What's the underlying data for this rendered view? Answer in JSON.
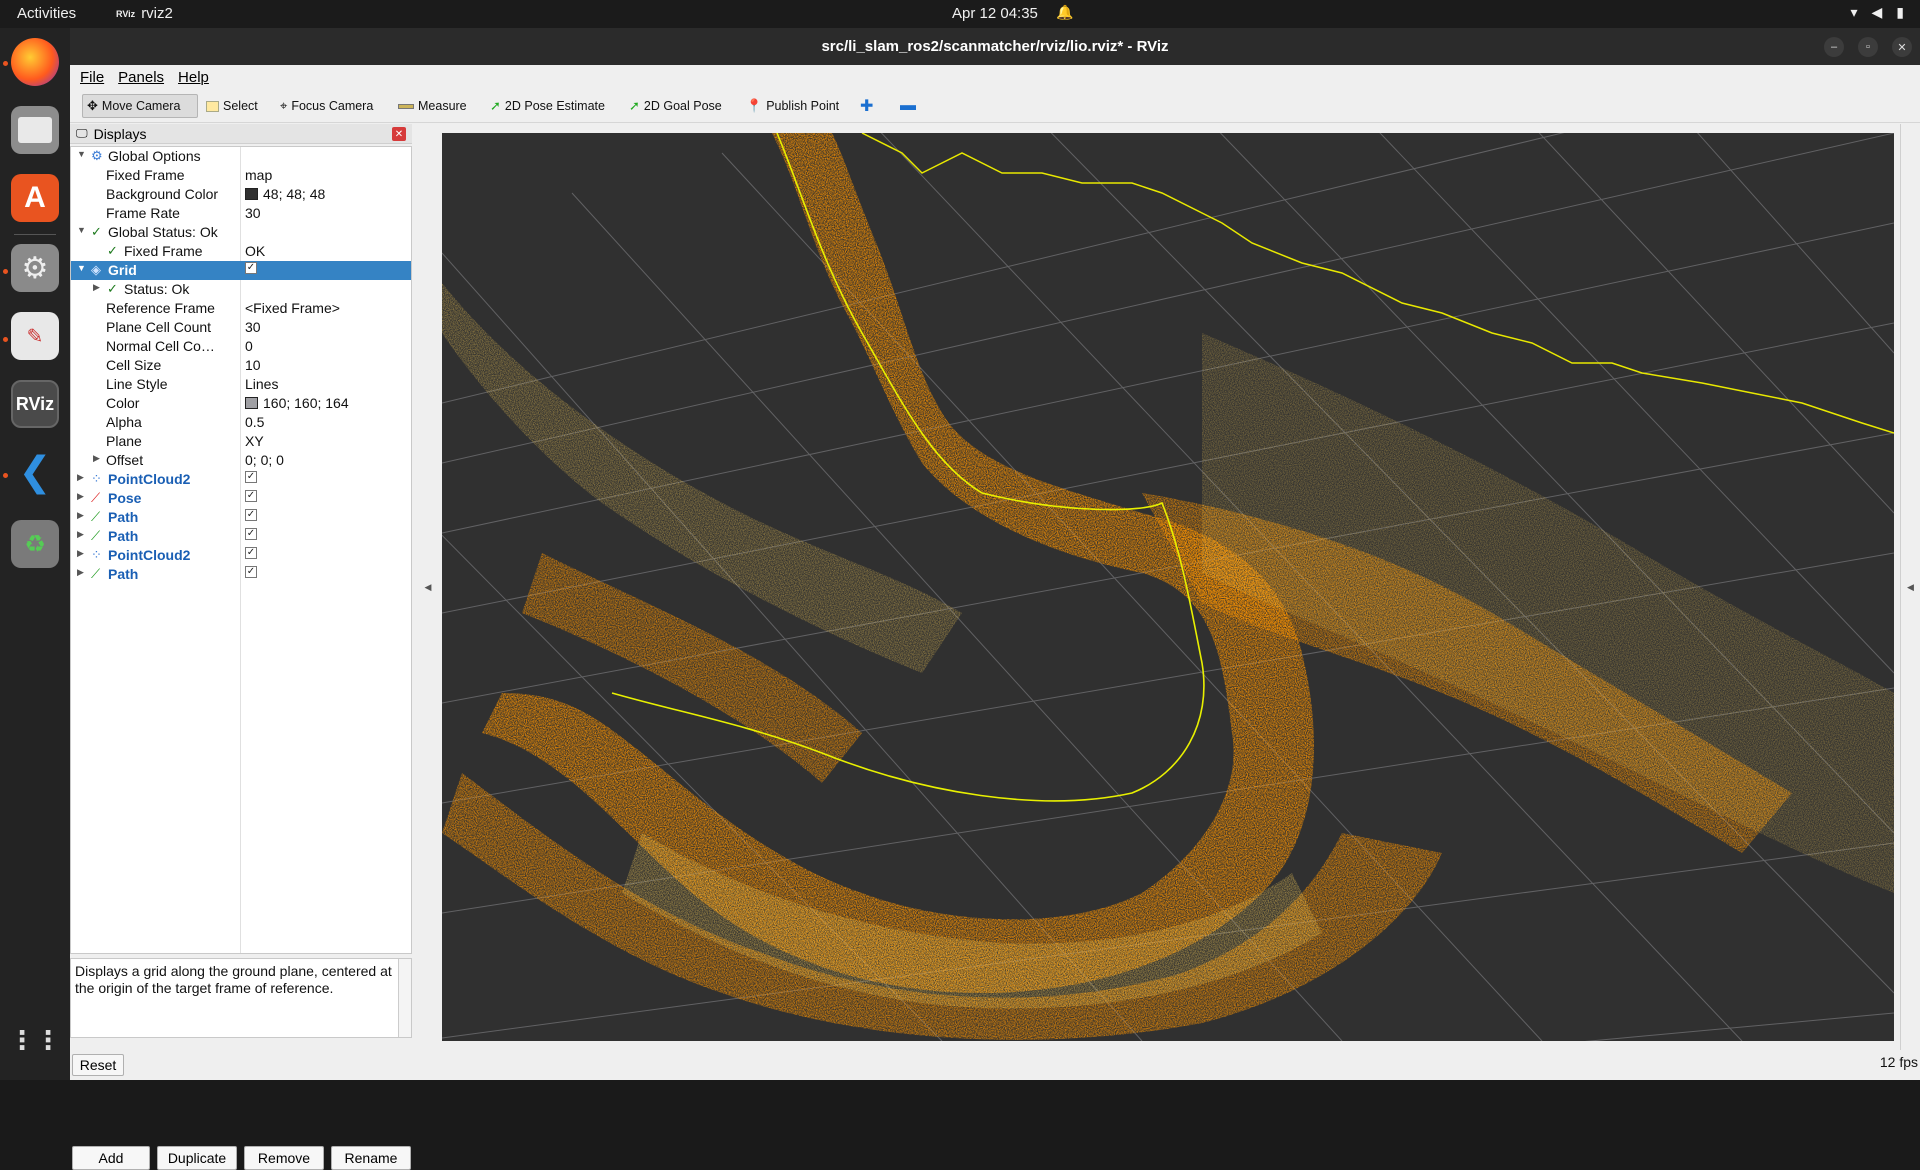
{
  "topbar": {
    "activities": "Activities",
    "app_name": "rviz2",
    "app_logo": "RViz",
    "datetime": "Apr 12  04:35",
    "tray_icons": [
      "wifi-icon",
      "volume-icon",
      "battery-icon"
    ]
  },
  "dock": {
    "items": [
      "firefox-icon",
      "files-icon",
      "app-center-icon",
      "settings-icon",
      "text-editor-icon",
      "rviz-icon",
      "vscode-icon",
      "trash-icon",
      "show-apps-icon"
    ],
    "rviz_label": "RViz"
  },
  "window": {
    "title": "src/li_slam_ros2/scanmatcher/rviz/lio.rviz* - RViz"
  },
  "menu": {
    "file": "File",
    "panels": "Panels",
    "help": "Help"
  },
  "toolbar": {
    "move_camera": "Move Camera",
    "select": "Select",
    "focus_camera": "Focus Camera",
    "measure": "Measure",
    "pose_estimate": "2D Pose Estimate",
    "goal_pose": "2D Goal Pose",
    "publish_point": "Publish Point"
  },
  "displays": {
    "header": "Displays",
    "global_options": "Global Options",
    "fixed_frame_label": "Fixed Frame",
    "fixed_frame_value": "map",
    "background_color_label": "Background Color",
    "background_color_value": "48; 48; 48",
    "background_color_hex": "#303030",
    "frame_rate_label": "Frame Rate",
    "frame_rate_value": "30",
    "global_status": "Global Status: Ok",
    "status_fixed_frame_label": "Fixed Frame",
    "status_fixed_frame_value": "OK",
    "grid": {
      "label": "Grid",
      "status": "Status: Ok",
      "reference_frame_label": "Reference Frame",
      "reference_frame_value": "<Fixed Frame>",
      "plane_cell_count_label": "Plane Cell Count",
      "plane_cell_count_value": "30",
      "normal_cell_count_label": "Normal Cell Co…",
      "normal_cell_count_value": "0",
      "cell_size_label": "Cell Size",
      "cell_size_value": "10",
      "line_style_label": "Line Style",
      "line_style_value": "Lines",
      "color_label": "Color",
      "color_value": "160; 160; 164",
      "color_hex": "#a0a0a4",
      "alpha_label": "Alpha",
      "alpha_value": "0.5",
      "plane_label": "Plane",
      "plane_value": "XY",
      "offset_label": "Offset",
      "offset_value": "0; 0; 0"
    },
    "items": [
      {
        "label": "PointCloud2",
        "icon": "pointcloud-icon"
      },
      {
        "label": "Pose",
        "icon": "pose-arrow-icon"
      },
      {
        "label": "Path",
        "icon": "path-icon"
      },
      {
        "label": "Path",
        "icon": "path-icon"
      },
      {
        "label": "PointCloud2",
        "icon": "pointcloud-icon"
      },
      {
        "label": "Path",
        "icon": "path-icon"
      }
    ],
    "description": "Displays a grid along the ground plane, centered at the origin of the target frame of reference."
  },
  "buttons": {
    "add": "Add",
    "duplicate": "Duplicate",
    "remove": "Remove",
    "rename": "Rename",
    "reset": "Reset"
  },
  "status": {
    "fps": "12 fps"
  },
  "colors": {
    "accent_selection": "#3583c4",
    "path_color": "#e8f000",
    "cloud_red": "#ff3000",
    "cloud_orange": "#ff8a10"
  }
}
